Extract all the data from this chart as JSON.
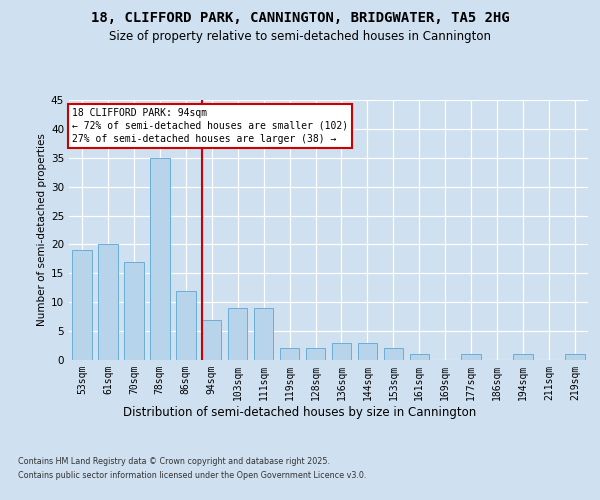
{
  "title1": "18, CLIFFORD PARK, CANNINGTON, BRIDGWATER, TA5 2HG",
  "title2": "Size of property relative to semi-detached houses in Cannington",
  "xlabel": "Distribution of semi-detached houses by size in Cannington",
  "ylabel": "Number of semi-detached properties",
  "categories": [
    "53sqm",
    "61sqm",
    "70sqm",
    "78sqm",
    "86sqm",
    "94sqm",
    "103sqm",
    "111sqm",
    "119sqm",
    "128sqm",
    "136sqm",
    "144sqm",
    "153sqm",
    "161sqm",
    "169sqm",
    "177sqm",
    "186sqm",
    "194sqm",
    "211sqm",
    "219sqm"
  ],
  "values": [
    19,
    20,
    17,
    35,
    12,
    7,
    9,
    9,
    2,
    2,
    3,
    3,
    2,
    1,
    0,
    1,
    0,
    1,
    0,
    1
  ],
  "bar_color": "#b8d4ea",
  "bar_edge_color": "#6aaed6",
  "property_index": 5,
  "annotation_title": "18 CLIFFORD PARK: 94sqm",
  "annotation_line1": "← 72% of semi-detached houses are smaller (102)",
  "annotation_line2": "27% of semi-detached houses are larger (38) →",
  "ylim_max": 45,
  "yticks": [
    0,
    5,
    10,
    15,
    20,
    25,
    30,
    35,
    40,
    45
  ],
  "footer1": "Contains HM Land Registry data © Crown copyright and database right 2025.",
  "footer2": "Contains public sector information licensed under the Open Government Licence v3.0.",
  "bg_color": "#cfe0f0",
  "red_color": "#cc0000",
  "title1_fontsize": 10,
  "title2_fontsize": 8.5,
  "ylabel_fontsize": 7.5,
  "xlabel_fontsize": 8.5,
  "tick_fontsize": 7,
  "annotation_fontsize": 7,
  "footer_fontsize": 5.8
}
